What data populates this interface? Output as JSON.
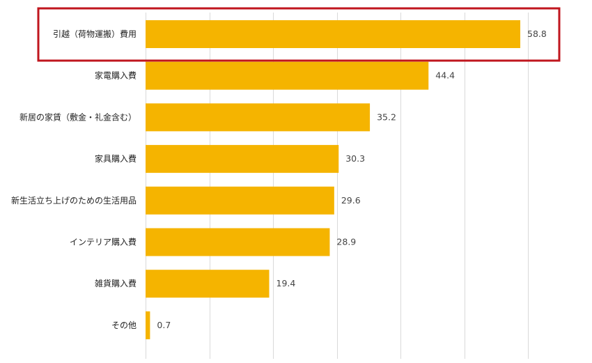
{
  "chart_data": {
    "type": "bar",
    "orientation": "horizontal",
    "categories": [
      "引越（荷物運搬）費用",
      "家電購入費",
      "新居の家賃（敷金・礼金含む）",
      "家具購入費",
      "新生活立ち上げのための生活用品",
      "インテリア購入費",
      "雑貨購入費",
      "その他"
    ],
    "values": [
      58.8,
      44.4,
      35.2,
      30.3,
      29.6,
      28.9,
      19.4,
      0.7
    ],
    "value_labels": [
      "58.8",
      "44.4",
      "35.2",
      "30.3",
      "29.6",
      "28.9",
      "19.4",
      "0.7"
    ],
    "title": "",
    "xlabel": "",
    "ylabel": "",
    "xlim": [
      0,
      60
    ],
    "gridline_step": 10,
    "grid": true,
    "legend": "none",
    "highlighted_category_index": 0
  },
  "colors": {
    "bar": "#F5B400",
    "highlight_border": "#C0161E",
    "grid": "#D9D9D9"
  }
}
